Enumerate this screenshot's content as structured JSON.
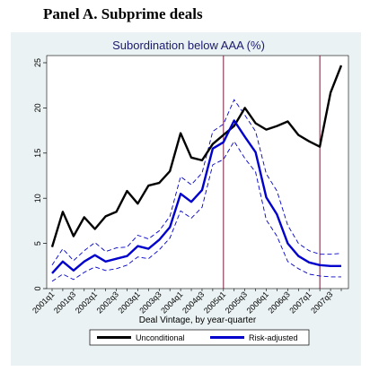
{
  "panel_title": "Panel A. Subprime deals",
  "chart_data": {
    "type": "line",
    "title": "Subordination below AAA (%)",
    "xlabel": "Deal Vintage, by year-quarter",
    "ylabel": "",
    "ylim": [
      0,
      25
    ],
    "yticks": [
      0,
      5,
      10,
      15,
      20,
      25
    ],
    "x": [
      "2001q1",
      "2001q2",
      "2001q3",
      "2001q4",
      "2002q1",
      "2002q2",
      "2002q3",
      "2002q4",
      "2003q1",
      "2003q2",
      "2003q3",
      "2003q4",
      "2004q1",
      "2004q2",
      "2004q3",
      "2004q4",
      "2005q1",
      "2005q2",
      "2005q3",
      "2005q4",
      "2006q1",
      "2006q2",
      "2006q3",
      "2006q4",
      "2007q1",
      "2007q2",
      "2007q3",
      "2007q4"
    ],
    "xtick_labels": [
      "2001q1",
      "2001q3",
      "2002q1",
      "2002q3",
      "2003q1",
      "2003q3",
      "2004q1",
      "2004q3",
      "2005q1",
      "2005q3",
      "2006q1",
      "2006q3",
      "2007q1",
      "2007q3"
    ],
    "vlines": [
      "2005q1",
      "2007q2"
    ],
    "vline_color": "#7a1a3a",
    "series": [
      {
        "name": "Unconditional",
        "color": "#000000",
        "values": [
          4.6,
          8.5,
          5.8,
          7.9,
          6.6,
          8.0,
          8.5,
          10.8,
          9.4,
          11.4,
          11.7,
          13.0,
          17.2,
          14.5,
          14.2,
          16.0,
          17.0,
          18.0,
          20.0,
          18.3,
          17.6,
          18.0,
          18.5,
          17.0,
          16.3,
          15.7,
          21.7,
          24.7
        ]
      },
      {
        "name": "Risk-adjusted",
        "color": "#0000cc",
        "values": [
          1.7,
          3.0,
          2.0,
          3.0,
          3.7,
          3.0,
          3.3,
          3.6,
          4.7,
          4.4,
          5.4,
          6.8,
          10.5,
          9.6,
          10.9,
          15.5,
          16.2,
          18.6,
          16.8,
          15.1,
          10.1,
          8.2,
          5.0,
          3.6,
          2.9,
          2.6,
          2.5,
          2.5
        ]
      }
    ],
    "confidence_band": {
      "series": "Risk-adjusted",
      "style": "dashed",
      "upper": [
        2.6,
        4.4,
        3.1,
        4.2,
        5.1,
        4.1,
        4.5,
        4.6,
        5.9,
        5.5,
        6.4,
        8.0,
        12.4,
        11.5,
        12.8,
        17.4,
        18.2,
        20.9,
        19.2,
        17.4,
        12.7,
        10.8,
        7.0,
        5.0,
        4.2,
        3.8,
        3.8,
        3.9
      ],
      "lower": [
        0.8,
        1.6,
        1.0,
        1.8,
        2.4,
        2.0,
        2.2,
        2.6,
        3.5,
        3.3,
        4.3,
        5.6,
        8.6,
        7.8,
        9.0,
        13.7,
        14.3,
        16.3,
        14.4,
        12.9,
        7.6,
        5.8,
        3.0,
        2.2,
        1.6,
        1.4,
        1.3,
        1.3
      ]
    },
    "legend": {
      "position": "bottom"
    },
    "grid": false
  }
}
